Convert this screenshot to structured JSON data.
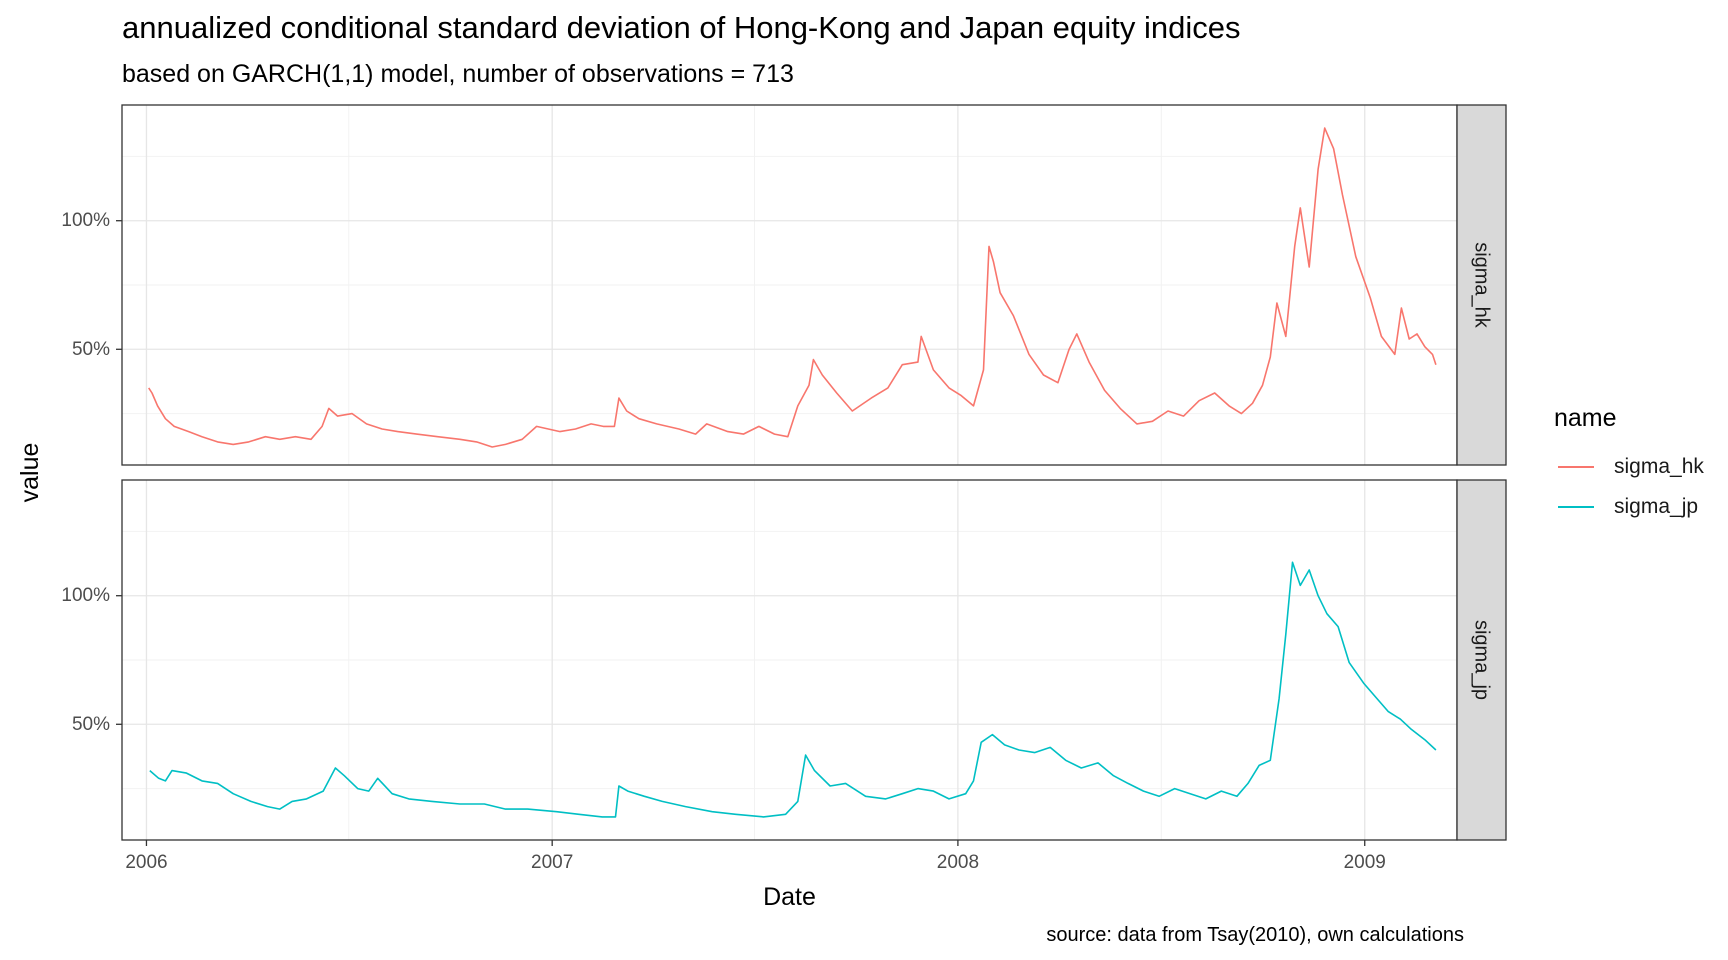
{
  "title": "annualized conditional standard deviation of Hong-Kong and Japan equity indices",
  "subtitle": "based on GARCH(1,1) model, number of observations = 713",
  "caption": "source: data from Tsay(2010), own calculations",
  "legend": {
    "title": "name",
    "items": [
      {
        "label": "sigma_hk",
        "color": "#F8766D"
      },
      {
        "label": "sigma_jp",
        "color": "#00BFC4"
      }
    ]
  },
  "chart_data": {
    "type": "line",
    "xlabel": "Date",
    "ylabel": "value",
    "x_ticks": [
      "2006",
      "2007",
      "2008",
      "2009"
    ],
    "y_ticks": [
      "50%",
      "100%"
    ],
    "xlim": [
      "2005-12-10",
      "2009-03-25"
    ],
    "ylim": [
      0.05,
      1.45
    ],
    "grid": true,
    "legend_position": "right",
    "facets": [
      "sigma_hk",
      "sigma_jp"
    ],
    "series": [
      {
        "name": "sigma_hk",
        "color": "#F8766D",
        "points": [
          [
            "2006-01-03",
            0.35
          ],
          [
            "2006-01-06",
            0.33
          ],
          [
            "2006-01-11",
            0.28
          ],
          [
            "2006-01-18",
            0.23
          ],
          [
            "2006-01-26",
            0.2
          ],
          [
            "2006-02-08",
            0.18
          ],
          [
            "2006-02-20",
            0.16
          ],
          [
            "2006-03-06",
            0.14
          ],
          [
            "2006-03-20",
            0.13
          ],
          [
            "2006-04-03",
            0.14
          ],
          [
            "2006-04-18",
            0.16
          ],
          [
            "2006-05-01",
            0.15
          ],
          [
            "2006-05-15",
            0.16
          ],
          [
            "2006-05-29",
            0.15
          ],
          [
            "2006-06-08",
            0.2
          ],
          [
            "2006-06-14",
            0.27
          ],
          [
            "2006-06-22",
            0.24
          ],
          [
            "2006-07-05",
            0.25
          ],
          [
            "2006-07-18",
            0.21
          ],
          [
            "2006-08-01",
            0.19
          ],
          [
            "2006-08-15",
            0.18
          ],
          [
            "2006-09-01",
            0.17
          ],
          [
            "2006-09-20",
            0.16
          ],
          [
            "2006-10-10",
            0.15
          ],
          [
            "2006-10-25",
            0.14
          ],
          [
            "2006-11-08",
            0.12
          ],
          [
            "2006-11-20",
            0.13
          ],
          [
            "2006-12-05",
            0.15
          ],
          [
            "2006-12-18",
            0.2
          ],
          [
            "2007-01-08",
            0.18
          ],
          [
            "2007-01-22",
            0.19
          ],
          [
            "2007-02-05",
            0.21
          ],
          [
            "2007-02-16",
            0.2
          ],
          [
            "2007-02-26",
            0.2
          ],
          [
            "2007-03-02",
            0.31
          ],
          [
            "2007-03-09",
            0.26
          ],
          [
            "2007-03-20",
            0.23
          ],
          [
            "2007-04-05",
            0.21
          ],
          [
            "2007-04-25",
            0.19
          ],
          [
            "2007-05-10",
            0.17
          ],
          [
            "2007-05-20",
            0.21
          ],
          [
            "2007-06-08",
            0.18
          ],
          [
            "2007-06-22",
            0.17
          ],
          [
            "2007-07-06",
            0.2
          ],
          [
            "2007-07-20",
            0.17
          ],
          [
            "2007-08-01",
            0.16
          ],
          [
            "2007-08-10",
            0.28
          ],
          [
            "2007-08-20",
            0.36
          ],
          [
            "2007-08-24",
            0.46
          ],
          [
            "2007-09-01",
            0.4
          ],
          [
            "2007-09-14",
            0.33
          ],
          [
            "2007-09-28",
            0.26
          ],
          [
            "2007-10-15",
            0.31
          ],
          [
            "2007-10-30",
            0.35
          ],
          [
            "2007-11-12",
            0.44
          ],
          [
            "2007-11-26",
            0.45
          ],
          [
            "2007-11-29",
            0.55
          ],
          [
            "2007-12-10",
            0.42
          ],
          [
            "2007-12-24",
            0.35
          ],
          [
            "2008-01-04",
            0.32
          ],
          [
            "2008-01-15",
            0.28
          ],
          [
            "2008-01-24",
            0.42
          ],
          [
            "2008-01-29",
            0.9
          ],
          [
            "2008-02-02",
            0.84
          ],
          [
            "2008-02-08",
            0.72
          ],
          [
            "2008-02-20",
            0.63
          ],
          [
            "2008-03-05",
            0.48
          ],
          [
            "2008-03-18",
            0.4
          ],
          [
            "2008-03-31",
            0.37
          ],
          [
            "2008-04-10",
            0.5
          ],
          [
            "2008-04-17",
            0.56
          ],
          [
            "2008-04-28",
            0.45
          ],
          [
            "2008-05-12",
            0.34
          ],
          [
            "2008-05-26",
            0.27
          ],
          [
            "2008-06-10",
            0.21
          ],
          [
            "2008-06-24",
            0.22
          ],
          [
            "2008-07-08",
            0.26
          ],
          [
            "2008-07-22",
            0.24
          ],
          [
            "2008-08-05",
            0.3
          ],
          [
            "2008-08-19",
            0.33
          ],
          [
            "2008-09-01",
            0.28
          ],
          [
            "2008-09-12",
            0.25
          ],
          [
            "2008-09-22",
            0.29
          ],
          [
            "2008-10-01",
            0.36
          ],
          [
            "2008-10-08",
            0.47
          ],
          [
            "2008-10-14",
            0.68
          ],
          [
            "2008-10-22",
            0.55
          ],
          [
            "2008-10-30",
            0.9
          ],
          [
            "2008-11-04",
            1.05
          ],
          [
            "2008-11-12",
            0.82
          ],
          [
            "2008-11-20",
            1.2
          ],
          [
            "2008-11-26",
            1.36
          ],
          [
            "2008-12-04",
            1.28
          ],
          [
            "2008-12-12",
            1.1
          ],
          [
            "2008-12-24",
            0.86
          ],
          [
            "2009-01-06",
            0.7
          ],
          [
            "2009-01-16",
            0.55
          ],
          [
            "2009-01-28",
            0.48
          ],
          [
            "2009-02-03",
            0.66
          ],
          [
            "2009-02-10",
            0.54
          ],
          [
            "2009-02-17",
            0.56
          ],
          [
            "2009-02-24",
            0.51
          ],
          [
            "2009-03-03",
            0.48
          ],
          [
            "2009-03-06",
            0.44
          ]
        ]
      },
      {
        "name": "sigma_jp",
        "color": "#00BFC4",
        "points": [
          [
            "2006-01-04",
            0.32
          ],
          [
            "2006-01-12",
            0.29
          ],
          [
            "2006-01-18",
            0.28
          ],
          [
            "2006-01-24",
            0.32
          ],
          [
            "2006-02-06",
            0.31
          ],
          [
            "2006-02-20",
            0.28
          ],
          [
            "2006-03-06",
            0.27
          ],
          [
            "2006-03-20",
            0.23
          ],
          [
            "2006-04-05",
            0.2
          ],
          [
            "2006-04-20",
            0.18
          ],
          [
            "2006-05-01",
            0.17
          ],
          [
            "2006-05-12",
            0.2
          ],
          [
            "2006-05-25",
            0.21
          ],
          [
            "2006-06-09",
            0.24
          ],
          [
            "2006-06-20",
            0.33
          ],
          [
            "2006-06-28",
            0.3
          ],
          [
            "2006-07-10",
            0.25
          ],
          [
            "2006-07-20",
            0.24
          ],
          [
            "2006-07-28",
            0.29
          ],
          [
            "2006-08-10",
            0.23
          ],
          [
            "2006-08-25",
            0.21
          ],
          [
            "2006-09-15",
            0.2
          ],
          [
            "2006-10-10",
            0.19
          ],
          [
            "2006-11-01",
            0.19
          ],
          [
            "2006-11-20",
            0.17
          ],
          [
            "2006-12-10",
            0.17
          ],
          [
            "2007-01-05",
            0.16
          ],
          [
            "2007-01-25",
            0.15
          ],
          [
            "2007-02-15",
            0.14
          ],
          [
            "2007-02-27",
            0.14
          ],
          [
            "2007-03-02",
            0.26
          ],
          [
            "2007-03-10",
            0.24
          ],
          [
            "2007-03-25",
            0.22
          ],
          [
            "2007-04-10",
            0.2
          ],
          [
            "2007-05-01",
            0.18
          ],
          [
            "2007-05-25",
            0.16
          ],
          [
            "2007-06-15",
            0.15
          ],
          [
            "2007-07-10",
            0.14
          ],
          [
            "2007-07-30",
            0.15
          ],
          [
            "2007-08-10",
            0.2
          ],
          [
            "2007-08-17",
            0.38
          ],
          [
            "2007-08-25",
            0.32
          ],
          [
            "2007-09-08",
            0.26
          ],
          [
            "2007-09-22",
            0.27
          ],
          [
            "2007-10-10",
            0.22
          ],
          [
            "2007-10-28",
            0.21
          ],
          [
            "2007-11-12",
            0.23
          ],
          [
            "2007-11-26",
            0.25
          ],
          [
            "2007-12-10",
            0.24
          ],
          [
            "2007-12-24",
            0.21
          ],
          [
            "2008-01-08",
            0.23
          ],
          [
            "2008-01-15",
            0.28
          ],
          [
            "2008-01-22",
            0.43
          ],
          [
            "2008-02-01",
            0.46
          ],
          [
            "2008-02-12",
            0.42
          ],
          [
            "2008-02-25",
            0.4
          ],
          [
            "2008-03-10",
            0.39
          ],
          [
            "2008-03-24",
            0.41
          ],
          [
            "2008-04-07",
            0.36
          ],
          [
            "2008-04-21",
            0.33
          ],
          [
            "2008-05-06",
            0.35
          ],
          [
            "2008-05-20",
            0.3
          ],
          [
            "2008-06-02",
            0.27
          ],
          [
            "2008-06-16",
            0.24
          ],
          [
            "2008-06-30",
            0.22
          ],
          [
            "2008-07-14",
            0.25
          ],
          [
            "2008-07-28",
            0.23
          ],
          [
            "2008-08-11",
            0.21
          ],
          [
            "2008-08-25",
            0.24
          ],
          [
            "2008-09-08",
            0.22
          ],
          [
            "2008-09-18",
            0.27
          ],
          [
            "2008-09-28",
            0.34
          ],
          [
            "2008-10-08",
            0.36
          ],
          [
            "2008-10-16",
            0.6
          ],
          [
            "2008-10-22",
            0.85
          ],
          [
            "2008-10-28",
            1.13
          ],
          [
            "2008-11-04",
            1.04
          ],
          [
            "2008-11-12",
            1.1
          ],
          [
            "2008-11-20",
            1.0
          ],
          [
            "2008-11-28",
            0.93
          ],
          [
            "2008-12-08",
            0.88
          ],
          [
            "2008-12-18",
            0.74
          ],
          [
            "2008-12-31",
            0.66
          ],
          [
            "2009-01-12",
            0.6
          ],
          [
            "2009-01-22",
            0.55
          ],
          [
            "2009-02-02",
            0.52
          ],
          [
            "2009-02-12",
            0.48
          ],
          [
            "2009-02-24",
            0.44
          ],
          [
            "2009-03-06",
            0.4
          ]
        ]
      }
    ]
  }
}
